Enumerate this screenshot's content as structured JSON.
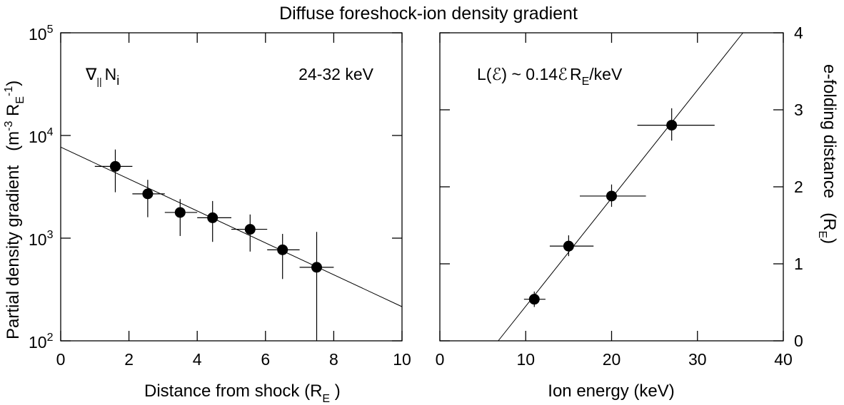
{
  "figure_title": "Diffuse foreshock-ion density gradient",
  "chart_data": [
    {
      "type": "scatter",
      "title": "",
      "xlabel": "Distance from shock (R",
      "xlabel_sub": "E",
      "xlabel_end": " )",
      "ylabel": "Partial density gradient   (m",
      "ylabel_sup1": "-3",
      "ylabel_mid": " R",
      "ylabel_sub": "E",
      "ylabel_sup2": "-1",
      "ylabel_end": ")",
      "y_scale": "log",
      "xlim": [
        0,
        10
      ],
      "ylim": [
        100,
        100000
      ],
      "x_ticks": [
        "0",
        "2",
        "4",
        "6",
        "8",
        "10"
      ],
      "y_ticks": [
        {
          "base": "10",
          "exp": "2"
        },
        {
          "base": "10",
          "exp": "3"
        },
        {
          "base": "10",
          "exp": "4"
        },
        {
          "base": "10",
          "exp": "5"
        }
      ],
      "annotation_left_symbol": "∇",
      "annotation_left_sub": "||",
      "annotation_left_text": "N",
      "annotation_left_sub2": "i",
      "annotation_right": "24-32 keV",
      "points": [
        {
          "x": 1.6,
          "y": 5000,
          "xerr": [
            1.0,
            2.1
          ],
          "yerr": [
            2800,
            7300
          ]
        },
        {
          "x": 2.55,
          "y": 2700,
          "xerr": [
            2.1,
            3.05
          ],
          "yerr": [
            1600,
            3700
          ]
        },
        {
          "x": 3.5,
          "y": 1780,
          "xerr": [
            3.05,
            4.0
          ],
          "yerr": [
            1050,
            2400
          ]
        },
        {
          "x": 4.45,
          "y": 1580,
          "xerr": [
            4.0,
            5.0
          ],
          "yerr": [
            920,
            2300
          ]
        },
        {
          "x": 5.55,
          "y": 1220,
          "xerr": [
            5.0,
            6.05
          ],
          "yerr": [
            740,
            1700
          ]
        },
        {
          "x": 6.5,
          "y": 770,
          "xerr": [
            6.05,
            7.0
          ],
          "yerr": [
            400,
            1100
          ]
        },
        {
          "x": 7.5,
          "y": 520,
          "xerr": [
            7.0,
            8.0
          ],
          "yerr": [
            100,
            1150
          ]
        }
      ],
      "fit_line": {
        "x": [
          0,
          10
        ],
        "y": [
          7700,
          215
        ]
      }
    },
    {
      "type": "scatter",
      "title": "",
      "xlabel": "Ion energy (keV)",
      "ylabel": "e-folding distance   (R",
      "ylabel_sub": "E",
      "ylabel_end": ")",
      "xlim": [
        0,
        40
      ],
      "ylim": [
        0,
        4
      ],
      "x_ticks": [
        "0",
        "10",
        "20",
        "30",
        "40"
      ],
      "y_ticks": [
        "0",
        "1",
        "2",
        "3",
        "4"
      ],
      "annotation_parts": [
        "L(",
        "ℰ",
        ") ~ 0.14",
        "ℰ",
        "R",
        "E",
        "/keV"
      ],
      "points": [
        {
          "x": 11,
          "y": 0.54,
          "xerr": [
            9.8,
            12.3
          ],
          "yerr": [
            0.44,
            0.64
          ]
        },
        {
          "x": 15,
          "y": 1.23,
          "xerr": [
            12.8,
            17.9
          ],
          "yerr": [
            1.1,
            1.37
          ]
        },
        {
          "x": 20,
          "y": 1.88,
          "xerr": [
            16.3,
            24.0
          ],
          "yerr": [
            1.74,
            2.03
          ]
        },
        {
          "x": 27,
          "y": 2.8,
          "xerr": [
            23.0,
            32.0
          ],
          "yerr": [
            2.6,
            3.02
          ]
        }
      ],
      "fit_line": {
        "x": [
          6.8,
          35.3
        ],
        "y": [
          0,
          4
        ]
      }
    }
  ]
}
